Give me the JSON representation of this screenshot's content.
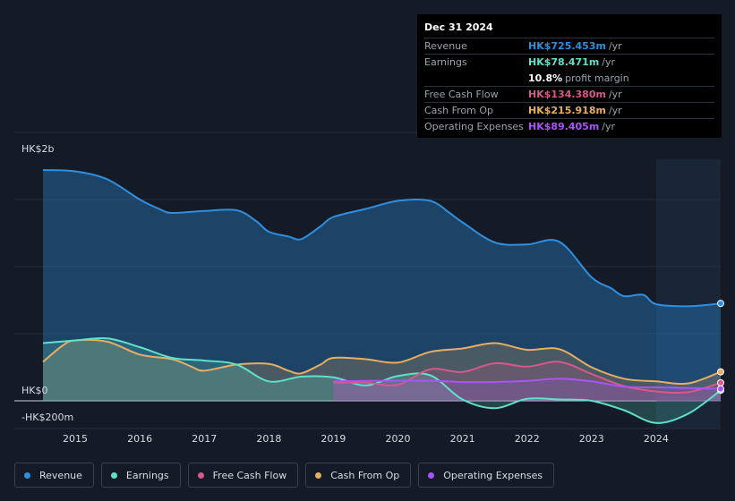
{
  "chart_data": {
    "type": "area",
    "currency_unit": "HK$ m",
    "y_axis_labels": {
      "top": "HK$2b",
      "zero": "HK$0",
      "bottom": "-HK$200m"
    },
    "ylim": [
      -200,
      2000
    ],
    "xlim": [
      2014.5,
      2025.0
    ],
    "x_ticks": [
      {
        "value": 2015,
        "label": "2015"
      },
      {
        "value": 2016,
        "label": "2016"
      },
      {
        "value": 2017,
        "label": "2017"
      },
      {
        "value": 2018,
        "label": "2018"
      },
      {
        "value": 2019,
        "label": "2019"
      },
      {
        "value": 2020,
        "label": "2020"
      },
      {
        "value": 2021,
        "label": "2021"
      },
      {
        "value": 2022,
        "label": "2022"
      },
      {
        "value": 2023,
        "label": "2023"
      },
      {
        "value": 2024,
        "label": "2024"
      }
    ],
    "highlight_from": 2024.0,
    "series": [
      {
        "key": "revenue",
        "name": "Revenue",
        "color": "#2e8fe0",
        "points": [
          [
            2014.5,
            1720
          ],
          [
            2015.0,
            1710
          ],
          [
            2015.5,
            1650
          ],
          [
            2016.0,
            1500
          ],
          [
            2016.3,
            1430
          ],
          [
            2016.5,
            1400
          ],
          [
            2017.0,
            1415
          ],
          [
            2017.5,
            1420
          ],
          [
            2017.8,
            1340
          ],
          [
            2018.0,
            1260
          ],
          [
            2018.3,
            1225
          ],
          [
            2018.5,
            1205
          ],
          [
            2018.8,
            1300
          ],
          [
            2019.0,
            1370
          ],
          [
            2019.5,
            1430
          ],
          [
            2020.0,
            1490
          ],
          [
            2020.5,
            1490
          ],
          [
            2020.8,
            1400
          ],
          [
            2021.0,
            1330
          ],
          [
            2021.5,
            1180
          ],
          [
            2022.0,
            1165
          ],
          [
            2022.5,
            1185
          ],
          [
            2023.0,
            920
          ],
          [
            2023.3,
            840
          ],
          [
            2023.5,
            780
          ],
          [
            2023.8,
            790
          ],
          [
            2024.0,
            720
          ],
          [
            2024.5,
            705
          ],
          [
            2025.0,
            725.453
          ]
        ]
      },
      {
        "key": "cash_from_op",
        "name": "Cash From Op",
        "color": "#e7ae63",
        "points": [
          [
            2014.5,
            290
          ],
          [
            2014.8,
            410
          ],
          [
            2015.0,
            450
          ],
          [
            2015.5,
            440
          ],
          [
            2016.0,
            345
          ],
          [
            2016.5,
            310
          ],
          [
            2016.8,
            255
          ],
          [
            2017.0,
            225
          ],
          [
            2017.5,
            270
          ],
          [
            2018.0,
            275
          ],
          [
            2018.3,
            225
          ],
          [
            2018.5,
            205
          ],
          [
            2018.8,
            270
          ],
          [
            2019.0,
            320
          ],
          [
            2019.5,
            310
          ],
          [
            2020.0,
            285
          ],
          [
            2020.5,
            365
          ],
          [
            2021.0,
            390
          ],
          [
            2021.5,
            430
          ],
          [
            2022.0,
            380
          ],
          [
            2022.5,
            385
          ],
          [
            2023.0,
            250
          ],
          [
            2023.5,
            165
          ],
          [
            2024.0,
            145
          ],
          [
            2024.5,
            130
          ],
          [
            2025.0,
            215.918
          ]
        ]
      },
      {
        "key": "earnings",
        "name": "Earnings",
        "color": "#5fe0c9",
        "points": [
          [
            2014.5,
            430
          ],
          [
            2015.0,
            450
          ],
          [
            2015.5,
            465
          ],
          [
            2016.0,
            400
          ],
          [
            2016.5,
            320
          ],
          [
            2017.0,
            300
          ],
          [
            2017.5,
            270
          ],
          [
            2018.0,
            145
          ],
          [
            2018.5,
            180
          ],
          [
            2019.0,
            175
          ],
          [
            2019.5,
            115
          ],
          [
            2020.0,
            185
          ],
          [
            2020.5,
            190
          ],
          [
            2021.0,
            10
          ],
          [
            2021.5,
            -55
          ],
          [
            2022.0,
            15
          ],
          [
            2022.5,
            10
          ],
          [
            2023.0,
            0
          ],
          [
            2023.5,
            -70
          ],
          [
            2024.0,
            -165
          ],
          [
            2024.5,
            -95
          ],
          [
            2025.0,
            78.471
          ]
        ]
      },
      {
        "key": "free_cash_flow",
        "name": "Free Cash Flow",
        "color": "#d9578a",
        "points": [
          [
            2019.0,
            135
          ],
          [
            2019.5,
            135
          ],
          [
            2020.0,
            120
          ],
          [
            2020.5,
            235
          ],
          [
            2021.0,
            215
          ],
          [
            2021.5,
            280
          ],
          [
            2022.0,
            255
          ],
          [
            2022.5,
            290
          ],
          [
            2023.0,
            200
          ],
          [
            2023.5,
            110
          ],
          [
            2024.0,
            70
          ],
          [
            2024.5,
            65
          ],
          [
            2025.0,
            134.38
          ]
        ]
      },
      {
        "key": "operating_expenses",
        "name": "Operating Expenses",
        "color": "#a855f7",
        "points": [
          [
            2019.0,
            145
          ],
          [
            2019.5,
            148
          ],
          [
            2020.0,
            150
          ],
          [
            2020.5,
            150
          ],
          [
            2021.0,
            140
          ],
          [
            2021.5,
            140
          ],
          [
            2022.0,
            148
          ],
          [
            2022.5,
            165
          ],
          [
            2023.0,
            145
          ],
          [
            2023.5,
            105
          ],
          [
            2024.0,
            100
          ],
          [
            2024.5,
            95
          ],
          [
            2025.0,
            89.405
          ]
        ]
      }
    ]
  },
  "tooltip": {
    "date": "Dec 31 2024",
    "rows": [
      {
        "label": "Revenue",
        "value": "HK$725.453m",
        "unit": "/yr",
        "color": "#2e8fe0"
      },
      {
        "label": "Earnings",
        "value": "HK$78.471m",
        "unit": "/yr",
        "color": "#5fe0c9"
      },
      {
        "label": "",
        "value": "10.8%",
        "unit": "profit margin",
        "color": "#ffffff"
      },
      {
        "label": "Free Cash Flow",
        "value": "HK$134.380m",
        "unit": "/yr",
        "color": "#d9578a"
      },
      {
        "label": "Cash From Op",
        "value": "HK$215.918m",
        "unit": "/yr",
        "color": "#e7ae63"
      },
      {
        "label": "Operating Expenses",
        "value": "HK$89.405m",
        "unit": "/yr",
        "color": "#a855f7"
      }
    ]
  },
  "legend": [
    {
      "label": "Revenue",
      "color": "#2e8fe0"
    },
    {
      "label": "Earnings",
      "color": "#5fe0c9"
    },
    {
      "label": "Free Cash Flow",
      "color": "#d9578a"
    },
    {
      "label": "Cash From Op",
      "color": "#e7ae63"
    },
    {
      "label": "Operating Expenses",
      "color": "#a855f7"
    }
  ]
}
